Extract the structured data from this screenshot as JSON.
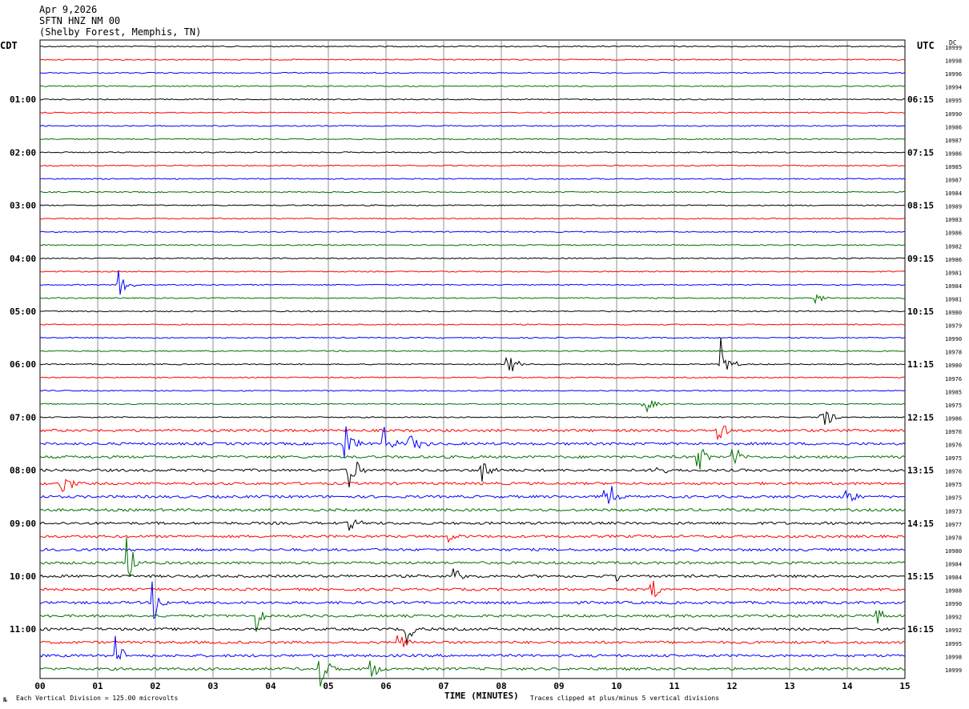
{
  "header": {
    "date": "Apr 9,2026",
    "station": "SFTN HNZ NM 00",
    "location": "(Shelby Forest, Memphis, TN)"
  },
  "axes": {
    "left_title": "CDT",
    "right_title": "UTC",
    "dc_title": "DC",
    "x_title": "TIME (MINUTES)"
  },
  "footer": {
    "left_note": "Each Vertical Division =  125.00 microvolts",
    "right_note": "Traces clipped at plus/minus 5 vertical divisions",
    "logo_text": "№"
  },
  "colors": {
    "trace_cycle": [
      "#000000",
      "#ff0000",
      "#0000ff",
      "#007000"
    ],
    "grid": "#909090"
  },
  "chart_data": {
    "type": "line",
    "title": "Apr 9,2026 SFTN HNZ NM 00 (Shelby Forest, Memphis, TN)",
    "xlabel": "TIME (MINUTES)",
    "ylabel": "CDT",
    "xlim": [
      0,
      15
    ],
    "x_ticks": [
      "00",
      "01",
      "02",
      "03",
      "04",
      "05",
      "06",
      "07",
      "08",
      "09",
      "10",
      "11",
      "12",
      "13",
      "14",
      "15"
    ],
    "left_hour_labels": [
      "01:00",
      "02:00",
      "03:00",
      "04:00",
      "05:00",
      "06:00",
      "07:00",
      "08:00",
      "09:00",
      "10:00",
      "11:00"
    ],
    "right_hour_labels": [
      "06:15",
      "07:15",
      "08:15",
      "09:15",
      "10:15",
      "11:15",
      "12:15",
      "13:15",
      "14:15",
      "15:15",
      "16:15"
    ],
    "dc_values": [
      "10999",
      "10998",
      "10996",
      "10994",
      "10995",
      "10990",
      "10986",
      "10987",
      "10986",
      "10985",
      "10987",
      "10984",
      "10989",
      "10983",
      "10986",
      "10982",
      "10986",
      "10981",
      "10984",
      "10981",
      "10980",
      "10979",
      "10990",
      "10978",
      "10980",
      "10976",
      "10985",
      "10975",
      "10986",
      "10976",
      "10976",
      "10975",
      "10976",
      "10975",
      "10975",
      "10973",
      "10977",
      "10978",
      "10980",
      "10984",
      "10984",
      "10988",
      "10990",
      "10992",
      "10992",
      "10995",
      "10998",
      "10999"
    ],
    "traces_count": 48,
    "events": [
      {
        "trace": 18,
        "minute": 1.35,
        "amp": 36,
        "color": "#0000ff"
      },
      {
        "trace": 19,
        "minute": 13.45,
        "amp": 10,
        "color": "#007000"
      },
      {
        "trace": 24,
        "minute": 8.1,
        "amp": 20,
        "color": "#000000"
      },
      {
        "trace": 24,
        "minute": 11.8,
        "amp": 36,
        "color": "#000000"
      },
      {
        "trace": 27,
        "minute": 10.45,
        "amp": 22,
        "color": "#007000"
      },
      {
        "trace": 28,
        "minute": 13.55,
        "amp": 26,
        "color": "#000000"
      },
      {
        "trace": 29,
        "minute": 11.75,
        "amp": 24,
        "color": "#ff0000"
      },
      {
        "trace": 30,
        "minute": 5.25,
        "amp": 36,
        "color": "#0000ff"
      },
      {
        "trace": 30,
        "minute": 5.95,
        "amp": 28,
        "color": "#0000ff"
      },
      {
        "trace": 30,
        "minute": 6.4,
        "amp": 30,
        "color": "#0000ff"
      },
      {
        "trace": 31,
        "minute": 11.4,
        "amp": 24,
        "color": "#007000"
      },
      {
        "trace": 31,
        "minute": 12.0,
        "amp": 20,
        "color": "#007000"
      },
      {
        "trace": 32,
        "minute": 5.35,
        "amp": 36,
        "color": "#000000"
      },
      {
        "trace": 32,
        "minute": 7.65,
        "amp": 22,
        "color": "#000000"
      },
      {
        "trace": 32,
        "minute": 10.7,
        "amp": 8,
        "color": "#000000"
      },
      {
        "trace": 33,
        "minute": 0.35,
        "amp": 30,
        "color": "#ff0000"
      },
      {
        "trace": 34,
        "minute": 9.8,
        "amp": 36,
        "color": "#0000ff"
      },
      {
        "trace": 34,
        "minute": 13.95,
        "amp": 18,
        "color": "#0000ff"
      },
      {
        "trace": 36,
        "minute": 5.35,
        "amp": 12,
        "color": "#000000"
      },
      {
        "trace": 37,
        "minute": 7.05,
        "amp": 14,
        "color": "#ff0000"
      },
      {
        "trace": 39,
        "minute": 1.5,
        "amp": 36,
        "color": "#007000"
      },
      {
        "trace": 40,
        "minute": 7.15,
        "amp": 18,
        "color": "#000000"
      },
      {
        "trace": 40,
        "minute": 9.95,
        "amp": 14,
        "color": "#000000"
      },
      {
        "trace": 41,
        "minute": 10.6,
        "amp": 18,
        "color": "#ff0000"
      },
      {
        "trace": 42,
        "minute": 1.95,
        "amp": 36,
        "color": "#0000ff"
      },
      {
        "trace": 43,
        "minute": 3.75,
        "amp": 20,
        "color": "#007000"
      },
      {
        "trace": 43,
        "minute": 14.5,
        "amp": 14,
        "color": "#007000"
      },
      {
        "trace": 44,
        "minute": 6.35,
        "amp": 18,
        "color": "#000000"
      },
      {
        "trace": 45,
        "minute": 6.2,
        "amp": 14,
        "color": "#ff0000"
      },
      {
        "trace": 46,
        "minute": 1.3,
        "amp": 30,
        "color": "#0000ff"
      },
      {
        "trace": 47,
        "minute": 4.85,
        "amp": 30,
        "color": "#007000"
      },
      {
        "trace": 47,
        "minute": 5.7,
        "amp": 22,
        "color": "#007000"
      }
    ]
  }
}
